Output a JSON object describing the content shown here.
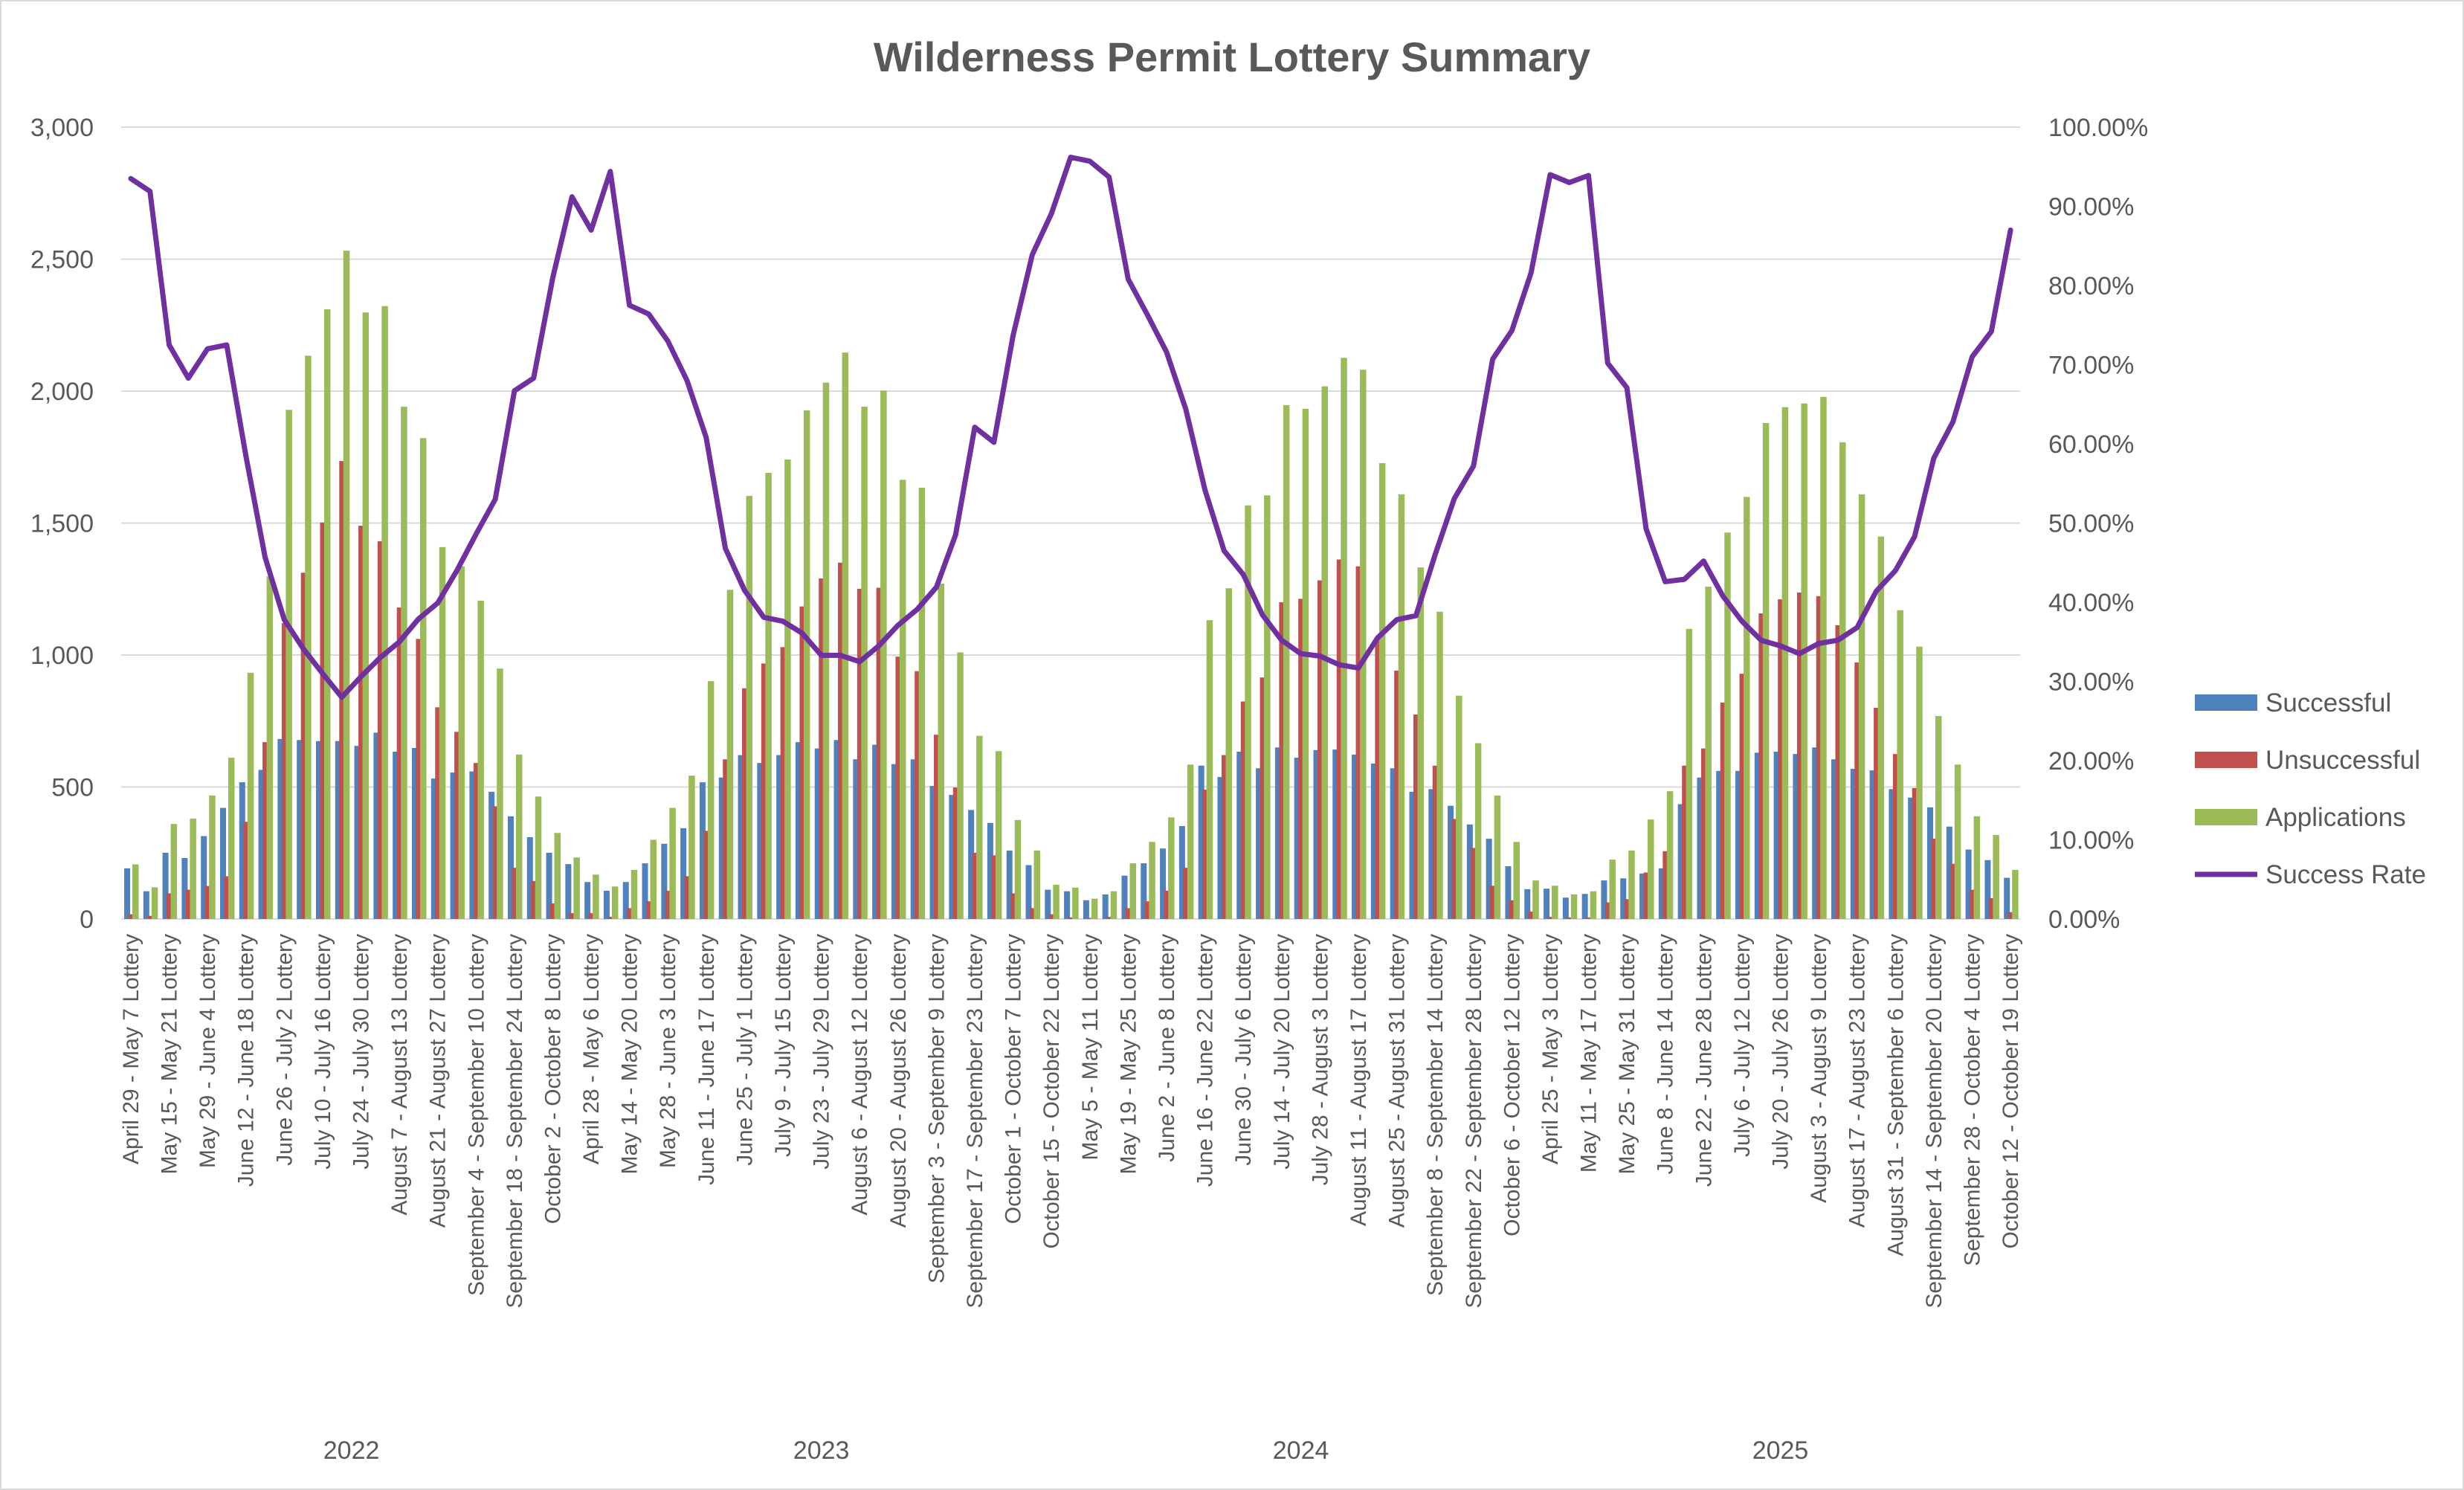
{
  "chart_data": {
    "type": "bar",
    "combo": "clustered bar with line on secondary axis",
    "title": "Wilderness Permit Lottery Summary",
    "xlabel": "",
    "ylabel": "",
    "y_left": {
      "range": [
        0,
        3000
      ],
      "ticks": [
        "0",
        "500",
        "1,000",
        "1,500",
        "2,000",
        "2,500",
        "3,000"
      ]
    },
    "y_right": {
      "range": [
        0,
        100
      ],
      "unit": "percent",
      "ticks": [
        "0.00%",
        "10.00%",
        "20.00%",
        "30.00%",
        "40.00%",
        "50.00%",
        "60.00%",
        "70.00%",
        "80.00%",
        "90.00%",
        "100.00%"
      ]
    },
    "grid": true,
    "legend_position": "right",
    "groups": [
      {
        "label": "2022",
        "count": 24
      },
      {
        "label": "2023",
        "count": 25
      },
      {
        "label": "2024",
        "count": 25
      },
      {
        "label": "2025",
        "count": 25
      }
    ],
    "categories": [
      "April 29 - May 7 Lottery",
      "",
      "May 15 - May 21 Lottery",
      "",
      "May 29 - June 4 Lottery",
      "",
      "June 12 - June 18 Lottery",
      "",
      "June 26 - July 2 Lottery",
      "",
      "July 10 - July 16 Lottery",
      "",
      "July 24 - July 30 Lottery",
      "",
      "August 7 - August 13 Lottery",
      "",
      "August 21 - August 27 Lottery",
      "",
      "September 4 - September 10 Lottery",
      "",
      "September 18 - September 24 Lottery",
      "",
      "October 2 - October 8 Lottery",
      "",
      "April 28 - May 6 Lottery",
      "",
      "May 14 - May 20 Lottery",
      "",
      "May 28 - June 3 Lottery",
      "",
      "June 11 - June 17 Lottery",
      "",
      "June 25 - July 1 Lottery",
      "",
      "July 9 - July 15 Lottery",
      "",
      "July 23 - July 29 Lottery",
      "",
      "August 6 - August 12 Lottery",
      "",
      "August 20 - August 26 Lottery",
      "",
      "September 3 - September 9 Lottery",
      "",
      "September 17 - September 23 Lottery",
      "",
      "October 1 - October 7 Lottery",
      "",
      "October 15 - October 22 Lottery",
      "",
      "May 5 - May 11 Lottery",
      "",
      "May 19 - May 25 Lottery",
      "",
      "June 2 - June 8 Lottery",
      "",
      "June 16 - June 22 Lottery",
      "",
      "June 30 - July 6 Lottery",
      "",
      "July 14 - July 20 Lottery",
      "",
      "July 28 - August 3 Lottery",
      "",
      "August 11 - August 17 Lottery",
      "",
      "August 25 - August 31 Lottery",
      "",
      "September 8 - September 14 Lottery",
      "",
      "September 22 - September 28 Lottery",
      "",
      "October 6 - October 12 Lottery",
      "",
      "April 25 - May 3 Lottery",
      "",
      "May 11 - May 17 Lottery",
      "",
      "May 25 - May 31 Lottery",
      "",
      "June 8 - June 14 Lottery",
      "",
      "June 22 - June 28 Lottery",
      "",
      "July 6 - July 12 Lottery",
      "",
      "July 20 - July 26 Lottery",
      "",
      "August 3 - August 9 Lottery",
      "",
      "August 17 - August 23 Lottery",
      "",
      "August 31 - September 6 Lottery",
      "",
      "September 14 - September 20 Lottery",
      "",
      "September 28 - October 4 Lottery",
      "",
      "October 12 - October 19 Lottery"
    ],
    "series": [
      {
        "name": "Successful",
        "kind": "bar",
        "axis": "left",
        "color": "#4F81BD",
        "values": [
          192,
          105,
          251,
          231,
          314,
          421,
          518,
          565,
          682,
          678,
          674,
          674,
          656,
          706,
          634,
          648,
          532,
          555,
          559,
          482,
          389,
          310,
          251,
          208,
          140,
          107,
          140,
          211,
          285,
          344,
          518,
          536,
          621,
          591,
          621,
          670,
          646,
          678,
          605,
          660,
          587,
          605,
          504,
          470,
          413,
          364,
          259,
          204,
          111,
          105,
          71,
          93,
          164,
          211,
          267,
          352,
          581,
          538,
          634,
          571,
          650,
          611,
          640,
          642,
          623,
          589,
          571,
          482,
          492,
          429,
          358,
          304,
          200,
          113,
          115,
          81,
          95,
          146,
          154,
          172,
          192,
          435,
          536,
          561,
          561,
          630,
          634,
          625,
          650,
          605,
          569,
          563,
          492,
          460,
          423,
          350,
          263,
          223,
          156
        ]
      },
      {
        "name": "Unsuccessful",
        "kind": "bar",
        "axis": "left",
        "color": "#C0504D",
        "values": [
          18,
          12,
          97,
          111,
          125,
          162,
          368,
          670,
          1121,
          1312,
          1502,
          1735,
          1490,
          1431,
          1180,
          1061,
          802,
          709,
          591,
          427,
          194,
          144,
          59,
          22,
          22,
          8,
          41,
          67,
          107,
          162,
          334,
          605,
          874,
          968,
          1030,
          1184,
          1290,
          1350,
          1251,
          1255,
          994,
          939,
          698,
          498,
          251,
          241,
          97,
          41,
          18,
          6,
          4,
          8,
          41,
          67,
          107,
          194,
          490,
          621,
          824,
          915,
          1200,
          1213,
          1283,
          1362,
          1336,
          1065,
          941,
          775,
          581,
          379,
          269,
          126,
          71,
          28,
          8,
          6,
          6,
          63,
          75,
          176,
          257,
          581,
          646,
          820,
          929,
          1158,
          1211,
          1237,
          1223,
          1113,
          972,
          800,
          625,
          496,
          304,
          209,
          111,
          79,
          26
        ]
      },
      {
        "name": "Applications",
        "kind": "bar",
        "axis": "left",
        "color": "#9BBB59",
        "values": [
          207,
          120,
          360,
          380,
          468,
          611,
          933,
          1298,
          1929,
          2134,
          2310,
          2532,
          2298,
          2322,
          1941,
          1822,
          1409,
          1336,
          1206,
          949,
          623,
          464,
          326,
          233,
          168,
          123,
          186,
          300,
          421,
          543,
          901,
          1247,
          1603,
          1690,
          1741,
          1927,
          2032,
          2146,
          1941,
          2002,
          1664,
          1634,
          1271,
          1010,
          694,
          636,
          375,
          259,
          130,
          119,
          77,
          105,
          211,
          292,
          385,
          585,
          1132,
          1253,
          1567,
          1605,
          1947,
          1933,
          2018,
          2126,
          2081,
          1727,
          1609,
          1332,
          1164,
          846,
          666,
          468,
          292,
          146,
          126,
          93,
          105,
          225,
          259,
          377,
          484,
          1099,
          1259,
          1464,
          1599,
          1879,
          1939,
          1953,
          1978,
          1806,
          1609,
          1449,
          1170,
          1032,
          769,
          585,
          389,
          318,
          186
        ]
      },
      {
        "name": "Success Rate",
        "kind": "line",
        "axis": "right",
        "unit": "percent",
        "color": "#7030A0",
        "values": [
          93.5,
          91.9,
          72.5,
          68.3,
          72.0,
          72.5,
          58.5,
          45.7,
          37.8,
          34.1,
          31.0,
          28.0,
          30.6,
          33.0,
          35.0,
          37.9,
          39.9,
          44.0,
          48.6,
          53.0,
          66.7,
          68.3,
          81.0,
          91.2,
          87.0,
          94.4,
          77.5,
          76.4,
          73.0,
          68.0,
          60.8,
          46.8,
          41.5,
          38.1,
          37.6,
          36.1,
          33.3,
          33.3,
          32.5,
          34.5,
          37.1,
          39.1,
          41.9,
          48.5,
          62.1,
          60.2,
          73.7,
          83.9,
          89.1,
          96.2,
          95.7,
          93.7,
          80.8,
          76.3,
          71.6,
          64.4,
          54.2,
          46.5,
          43.5,
          38.4,
          35.2,
          33.5,
          33.2,
          32.1,
          31.7,
          35.5,
          37.8,
          38.3,
          46.0,
          53.1,
          57.2,
          70.7,
          74.3,
          81.6,
          94.0,
          93.0,
          93.9,
          70.2,
          67.1,
          49.3,
          42.6,
          42.9,
          45.2,
          40.8,
          37.6,
          35.2,
          34.5,
          33.5,
          34.8,
          35.2,
          36.8,
          41.4,
          44.0,
          48.3,
          58.2,
          62.8,
          71.0,
          74.2,
          87.0
        ]
      }
    ]
  }
}
